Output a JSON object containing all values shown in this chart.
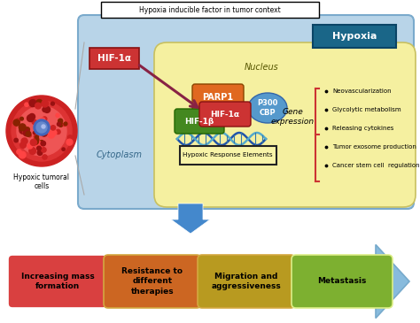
{
  "title": "Hypoxia inducible factor in tumor context",
  "bg_color": "#ffffff",
  "cell_outer_color": "#b8d4e8",
  "cell_outer_edge": "#7aaacc",
  "nucleus_color": "#f5f0a0",
  "nucleus_edge": "#c8c060",
  "hypoxia_box_color": "#1a6688",
  "hypoxia_text": "Hypoxia",
  "hif1a_box_color": "#cc3333",
  "hif1a_text": "HIF-1α",
  "parp1_color": "#e06820",
  "parp1_text": "PARP1",
  "hif1a_inner_color": "#cc3333",
  "hif1a_inner_text": "HIF-1α",
  "hif1b_color": "#448820",
  "hif1b_text": "HIF-1β",
  "p300_color": "#5599cc",
  "p300_text": "P300\nCBP",
  "gene_expression_text": "Gene\nexpression",
  "hypoxic_response_text": "Hypoxic Response Elements",
  "nucleus_label": "Nucleus",
  "cytoplasm_label": "Cytoplasm",
  "bullet_items": [
    "Neovascularization",
    "Glycolytic metabolism",
    "Releasing cytokines",
    "Tumor exosome production",
    "Cancer stem cell  regulation"
  ],
  "arrow_box_labels": [
    "Increasing mass\nformation",
    "Resistance to\ndifferent\ntherapies",
    "Migration and\naggressiveness",
    "Metastasis"
  ],
  "arrow_box_colors": [
    "#d94040",
    "#cc6622",
    "#b89a20",
    "#7db030"
  ],
  "down_arrow_color": "#4488cc",
  "right_arrow_color": "#88bbdd"
}
